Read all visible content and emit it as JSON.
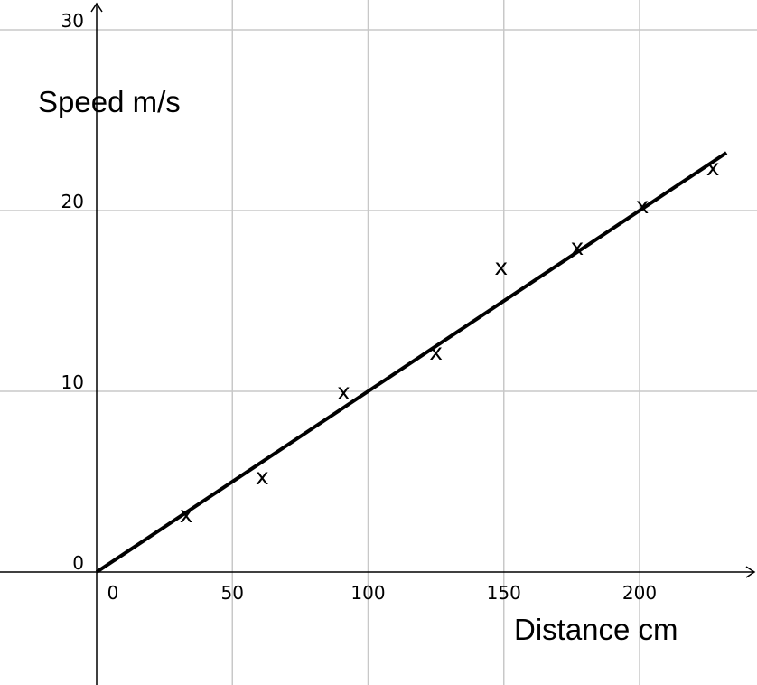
{
  "chart_data": {
    "type": "scatter",
    "title": "",
    "xlabel": "Distance cm",
    "ylabel": "Speed m/s",
    "xlim": [
      -35,
      243
    ],
    "ylim": [
      -6,
      31.5
    ],
    "x_ticks": [
      0,
      50,
      100,
      150,
      200
    ],
    "y_ticks": [
      0,
      10,
      20,
      30
    ],
    "grid": true,
    "marker_symbol": "x",
    "points": [
      {
        "x": 33,
        "y": 3.2
      },
      {
        "x": 61,
        "y": 5.3
      },
      {
        "x": 91,
        "y": 10.0
      },
      {
        "x": 125,
        "y": 12.2
      },
      {
        "x": 149,
        "y": 16.9
      },
      {
        "x": 177,
        "y": 18.0
      },
      {
        "x": 201,
        "y": 20.3
      },
      {
        "x": 227,
        "y": 22.4
      }
    ],
    "fit_line": {
      "x": [
        0,
        232
      ],
      "y": [
        0,
        23.2
      ]
    }
  }
}
